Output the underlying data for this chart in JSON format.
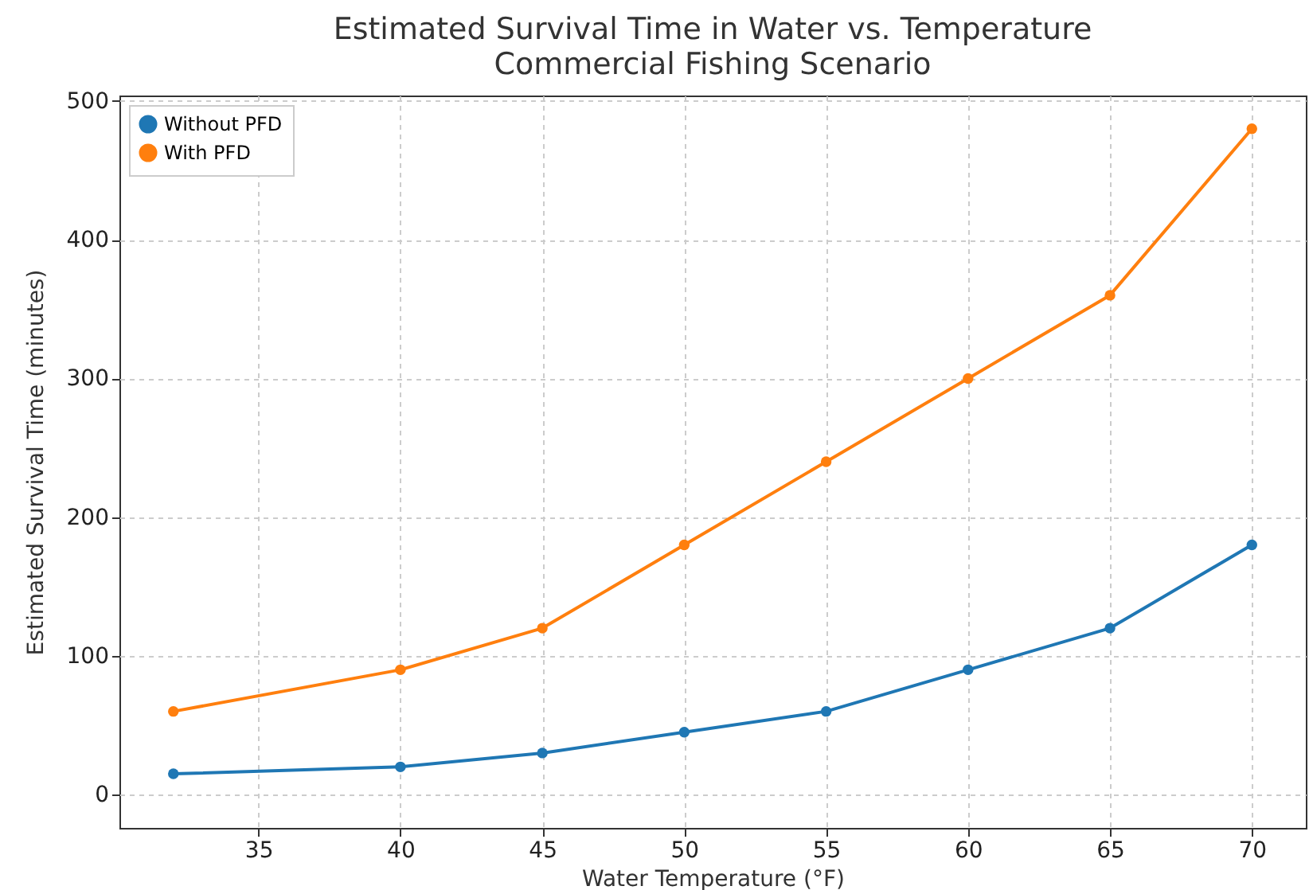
{
  "chart_data": {
    "type": "line",
    "title": "Estimated Survival Time in Water vs. Temperature\nCommercial Fishing Scenario",
    "xlabel": "Water Temperature (°F)",
    "ylabel": "Estimated Survival Time (minutes)",
    "x": [
      32,
      40,
      45,
      50,
      55,
      60,
      65,
      70
    ],
    "series": [
      {
        "name": "Without PFD",
        "color": "#1f77b4",
        "values": [
          15,
          20,
          30,
          45,
          60,
          90,
          120,
          180
        ]
      },
      {
        "name": "With PFD",
        "color": "#ff7f0e",
        "values": [
          60,
          90,
          120,
          180,
          240,
          300,
          360,
          480
        ]
      }
    ],
    "xlim": [
      30.1,
      71.9
    ],
    "xticks": [
      35,
      40,
      45,
      50,
      55,
      60,
      65,
      70
    ],
    "ylim": [
      -24,
      504
    ],
    "yticks": [
      0,
      100,
      200,
      300,
      400,
      500
    ],
    "grid": true,
    "legend": "top left",
    "marker": "circle",
    "line_style": "solid"
  }
}
